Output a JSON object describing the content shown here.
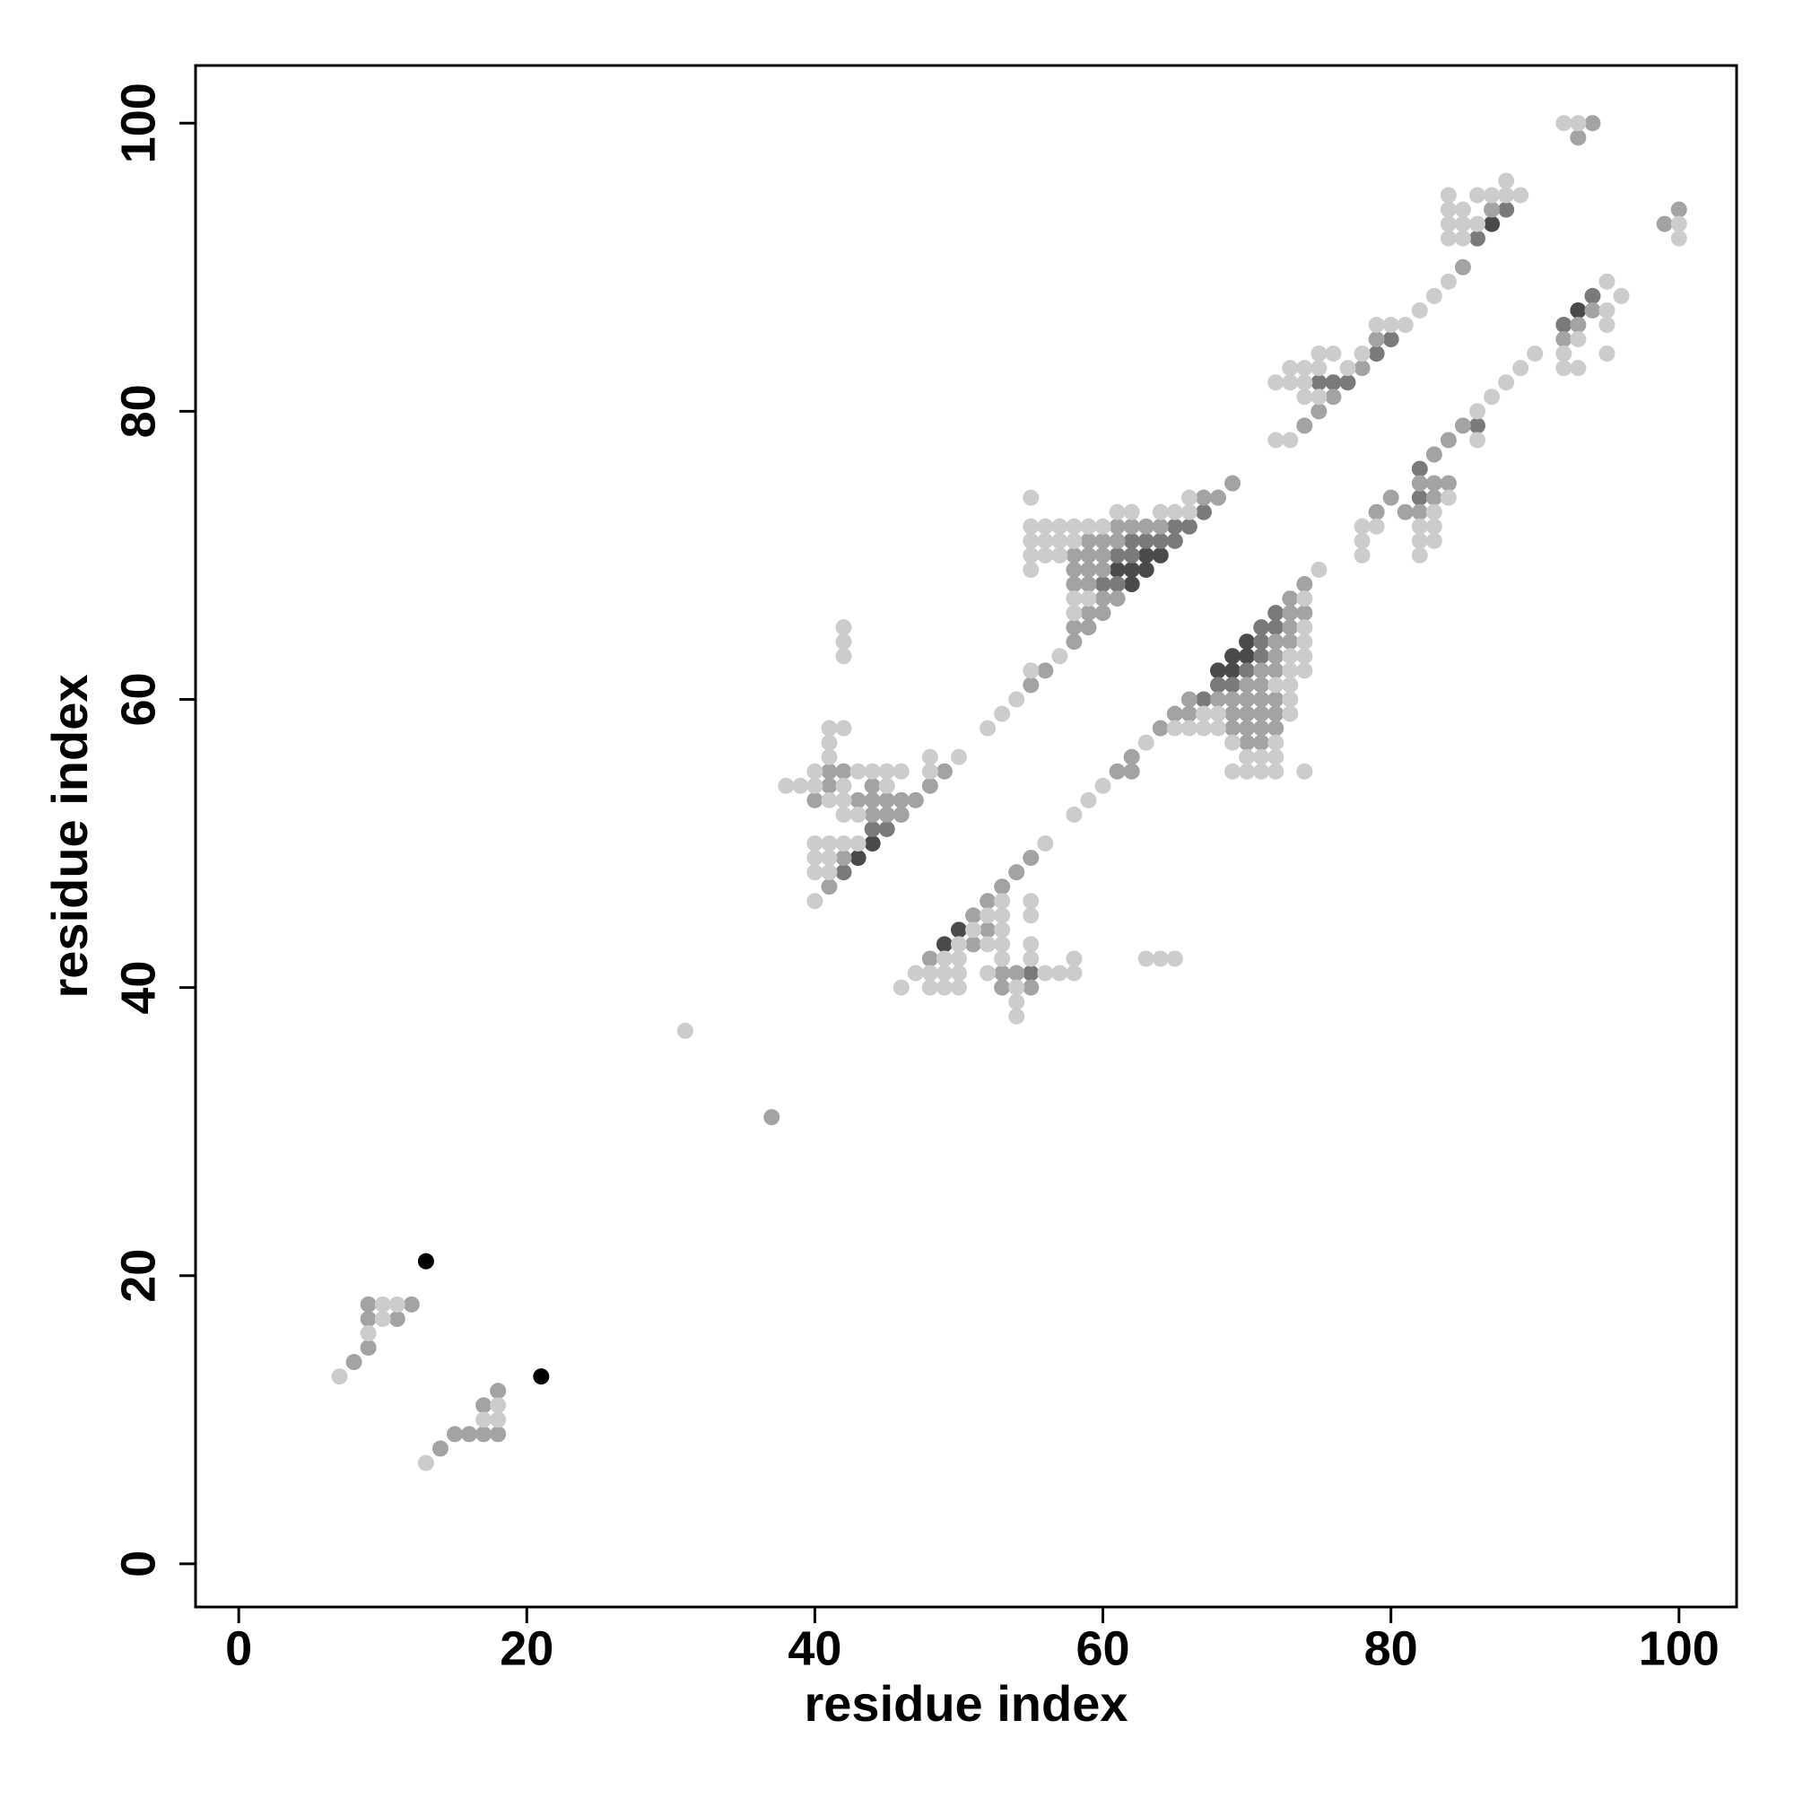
{
  "chart_data": {
    "type": "scatter",
    "xlabel": "residue index",
    "ylabel": "residue index",
    "xlim": [
      -3,
      104
    ],
    "ylim": [
      -3,
      104
    ],
    "xticks": [
      0,
      20,
      40,
      60,
      80,
      100
    ],
    "yticks": [
      0,
      20,
      40,
      60,
      80,
      100
    ],
    "grid": false,
    "series": [
      {
        "color": "#000000",
        "x": [
          13,
          21
        ],
        "y": [
          21,
          13
        ]
      },
      {
        "color": "#4a4a4a",
        "x": [
          61,
          62,
          62,
          63,
          63,
          64,
          43,
          44,
          68,
          69,
          69,
          70,
          70,
          87,
          49,
          50,
          93
        ],
        "y": [
          69,
          68,
          69,
          69,
          70,
          70,
          49,
          50,
          62,
          62,
          63,
          63,
          64,
          93,
          43,
          44,
          87
        ]
      },
      {
        "color": "#7a7a7a",
        "x": [
          60,
          61,
          61,
          62,
          62,
          63,
          64,
          65,
          65,
          66,
          67,
          42,
          44,
          45,
          76,
          75,
          77,
          79,
          80,
          86,
          88,
          55,
          67,
          68,
          69,
          70,
          71,
          71,
          71,
          72,
          72,
          82,
          82,
          86,
          92,
          94
        ],
        "y": [
          68,
          68,
          70,
          70,
          71,
          71,
          71,
          71,
          72,
          72,
          73,
          48,
          51,
          51,
          82,
          82,
          82,
          84,
          85,
          92,
          94,
          41,
          60,
          61,
          61,
          62,
          63,
          64,
          65,
          65,
          66,
          74,
          76,
          79,
          86,
          88
        ]
      },
      {
        "color": "#a3a3a3",
        "x": [
          8,
          9,
          9,
          9,
          11,
          12,
          14,
          15,
          16,
          17,
          17,
          18,
          18,
          37
        ],
        "y": [
          14,
          15,
          17,
          18,
          17,
          18,
          8,
          9,
          9,
          9,
          11,
          9,
          12,
          31
        ]
      },
      {
        "color": "#a3a3a3",
        "x": [
          41,
          42,
          40,
          41,
          44,
          44,
          45,
          45,
          46,
          46,
          47,
          43,
          44,
          41,
          48,
          49,
          42
        ],
        "y": [
          55,
          55,
          53,
          54,
          54,
          53,
          52,
          53,
          52,
          53,
          53,
          53,
          52,
          47,
          54,
          55,
          49
        ]
      },
      {
        "color": "#a3a3a3",
        "x": [
          58,
          58,
          58,
          58,
          58,
          59,
          59,
          59,
          59,
          59,
          59,
          60,
          60,
          60,
          60,
          60,
          61,
          61,
          61,
          62,
          63,
          64,
          67,
          68,
          69,
          55,
          56
        ],
        "y": [
          64,
          65,
          68,
          69,
          70,
          65,
          66,
          68,
          69,
          70,
          71,
          66,
          67,
          69,
          70,
          71,
          67,
          71,
          72,
          72,
          72,
          72,
          74,
          74,
          75,
          61,
          62
        ]
      },
      {
        "color": "#a3a3a3",
        "x": [
          74,
          75,
          76,
          78,
          79,
          85,
          93,
          94,
          99,
          100,
          87
        ],
        "y": [
          79,
          80,
          81,
          83,
          85,
          90,
          99,
          100,
          93,
          94,
          94
        ]
      },
      {
        "color": "#a3a3a3",
        "x": [
          64,
          65,
          66,
          66,
          68,
          69,
          69,
          69,
          70,
          70,
          70,
          70,
          70,
          71,
          71,
          71,
          71,
          71,
          71,
          72,
          72,
          72,
          72,
          72,
          72,
          73,
          73,
          73,
          73,
          74,
          74,
          61,
          62,
          62
        ],
        "y": [
          58,
          59,
          59,
          60,
          60,
          58,
          59,
          60,
          57,
          58,
          59,
          60,
          61,
          57,
          58,
          59,
          60,
          61,
          62,
          58,
          59,
          60,
          62,
          63,
          64,
          64,
          65,
          66,
          67,
          66,
          68,
          55,
          55,
          56
        ]
      },
      {
        "color": "#a3a3a3",
        "x": [
          48,
          51,
          52,
          53,
          53,
          54,
          55,
          51,
          52,
          53,
          54,
          55
        ],
        "y": [
          42,
          45,
          46,
          47,
          41,
          48,
          49,
          43,
          44,
          40,
          41,
          40
        ]
      },
      {
        "color": "#a3a3a3",
        "x": [
          80,
          83,
          84,
          85,
          81,
          82,
          82,
          83,
          83,
          84,
          79,
          92,
          93,
          94
        ],
        "y": [
          74,
          77,
          78,
          79,
          73,
          73,
          75,
          74,
          75,
          75,
          73,
          85,
          86,
          87
        ]
      },
      {
        "color": "#cccccc",
        "x": [
          7,
          9,
          10,
          10,
          11,
          13,
          17,
          18,
          18,
          31
        ],
        "y": [
          13,
          16,
          17,
          18,
          18,
          7,
          10,
          10,
          11,
          37
        ]
      },
      {
        "color": "#cccccc",
        "x": [
          38,
          39,
          40,
          40,
          41,
          41,
          41,
          41,
          42,
          42,
          42,
          42,
          40,
          40,
          40,
          40,
          41,
          41,
          41,
          42,
          43,
          42,
          42,
          43,
          43,
          44,
          45,
          45,
          46,
          48,
          48,
          50,
          42
        ],
        "y": [
          54,
          54,
          54,
          55,
          53,
          56,
          57,
          58,
          58,
          63,
          64,
          65,
          46,
          48,
          49,
          50,
          48,
          49,
          50,
          50,
          50,
          52,
          53,
          52,
          55,
          55,
          54,
          55,
          55,
          55,
          56,
          56,
          54
        ]
      },
      {
        "color": "#cccccc",
        "x": [
          52,
          53,
          54,
          55,
          57
        ],
        "y": [
          58,
          59,
          60,
          62,
          63
        ]
      },
      {
        "color": "#cccccc",
        "x": [
          55,
          55,
          55,
          55,
          55,
          56,
          56,
          56,
          57,
          57,
          57,
          58,
          58,
          58,
          58,
          59,
          59,
          60,
          61,
          62,
          64,
          65,
          66,
          66
        ],
        "y": [
          69,
          70,
          71,
          72,
          74,
          70,
          71,
          72,
          70,
          71,
          72,
          66,
          67,
          71,
          72,
          67,
          72,
          72,
          73,
          73,
          73,
          73,
          73,
          74
        ]
      },
      {
        "color": "#cccccc",
        "x": [
          72,
          73,
          74,
          75,
          74,
          75,
          75,
          76,
          77,
          78,
          72,
          73,
          73,
          74,
          79,
          80,
          81,
          82,
          83,
          84,
          84,
          84,
          85,
          85,
          86,
          84,
          84,
          85,
          86,
          87,
          88,
          88,
          89,
          92,
          93,
          100,
          100
        ],
        "y": [
          78,
          78,
          81,
          81,
          82,
          83,
          84,
          84,
          83,
          84,
          82,
          82,
          83,
          83,
          86,
          86,
          86,
          87,
          88,
          89,
          92,
          93,
          92,
          93,
          93,
          94,
          95,
          94,
          95,
          95,
          95,
          96,
          95,
          100,
          100,
          92,
          93
        ]
      },
      {
        "color": "#cccccc",
        "x": [
          46,
          47,
          48,
          48,
          49,
          49,
          49,
          50,
          50,
          50,
          50,
          52,
          52,
          52,
          53,
          53,
          53,
          53,
          53,
          54,
          54,
          54,
          55,
          55,
          55,
          55,
          56,
          56,
          57,
          58,
          58,
          63,
          64,
          65,
          51
        ],
        "y": [
          40,
          41,
          40,
          41,
          40,
          41,
          42,
          40,
          41,
          42,
          43,
          41,
          43,
          45,
          42,
          43,
          44,
          45,
          46,
          38,
          39,
          40,
          42,
          43,
          45,
          46,
          50,
          41,
          41,
          41,
          42,
          42,
          42,
          42,
          44
        ]
      },
      {
        "color": "#cccccc",
        "x": [
          58,
          59,
          60,
          63
        ],
        "y": [
          52,
          53,
          54,
          57
        ]
      },
      {
        "color": "#cccccc",
        "x": [
          65,
          66,
          67,
          67,
          68,
          68,
          69,
          69,
          70,
          70,
          71,
          71,
          72,
          72,
          72,
          72,
          73,
          73,
          73,
          73,
          73,
          74,
          74,
          74,
          74,
          74,
          74,
          75
        ],
        "y": [
          58,
          58,
          58,
          59,
          58,
          59,
          55,
          57,
          55,
          56,
          55,
          56,
          55,
          56,
          57,
          61,
          59,
          60,
          61,
          62,
          63,
          55,
          62,
          63,
          64,
          65,
          67,
          69
        ]
      },
      {
        "color": "#cccccc",
        "x": [
          78,
          78,
          78,
          79,
          82,
          82,
          82,
          83,
          83,
          83,
          84,
          86,
          86,
          87,
          88,
          89,
          90,
          92,
          92,
          93,
          93,
          95,
          95,
          95,
          95,
          96
        ],
        "y": [
          70,
          71,
          72,
          72,
          70,
          71,
          72,
          71,
          72,
          73,
          74,
          78,
          80,
          81,
          82,
          83,
          84,
          83,
          84,
          83,
          85,
          84,
          86,
          87,
          89,
          88
        ]
      }
    ]
  }
}
